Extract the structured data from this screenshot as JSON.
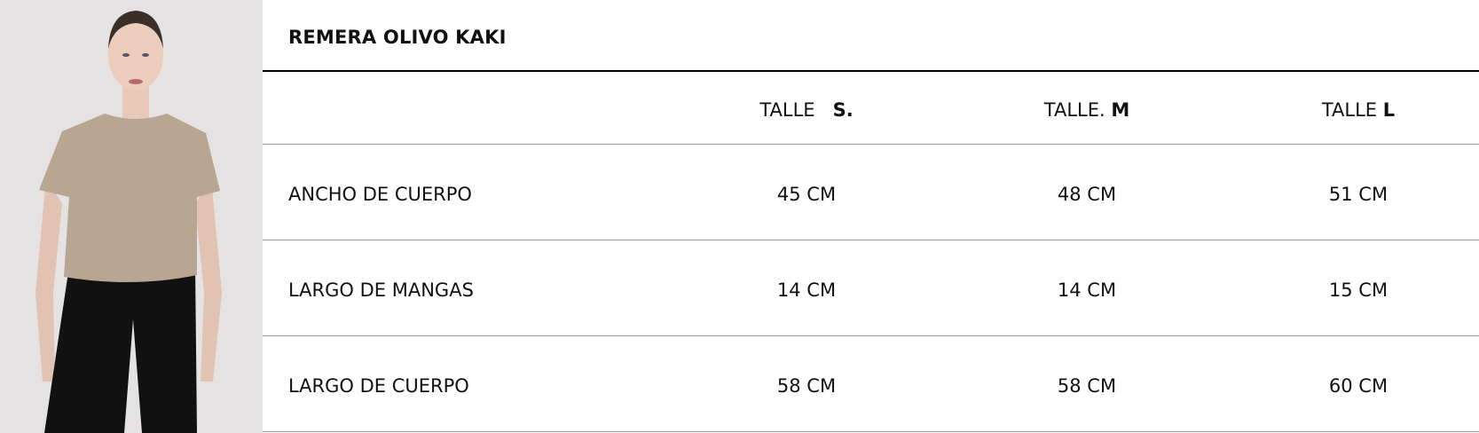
{
  "product": {
    "title": "REMERA OLIVO KAKI",
    "image": "model-wearing-khaki-tshirt"
  },
  "table": {
    "headers": [
      {
        "prefix": "TALLE",
        "size": "S."
      },
      {
        "prefix": "TALLE.",
        "size": "M"
      },
      {
        "prefix": "TALLE",
        "size": "L"
      }
    ],
    "rows": [
      {
        "label": "ANCHO DE CUERPO",
        "values": [
          "45 CM",
          "48 CM",
          "51 CM"
        ]
      },
      {
        "label": "LARGO DE MANGAS",
        "values": [
          "14 CM",
          "14 CM",
          "15 CM"
        ]
      },
      {
        "label": "LARGO DE CUERPO",
        "values": [
          "58 CM",
          "58 CM",
          "60 CM"
        ]
      }
    ]
  },
  "colors": {
    "shirt": "#b8a592",
    "background": "#e4e2e3",
    "pants": "#111111"
  }
}
